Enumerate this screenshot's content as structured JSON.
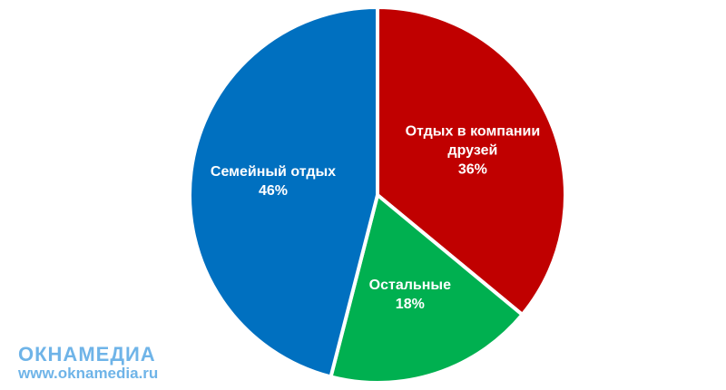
{
  "chart_data": {
    "type": "pie",
    "categories": [
      "Отдых в компании друзей",
      "Остальные",
      "Семейный отдых"
    ],
    "values": [
      36,
      18,
      46
    ],
    "value_labels": [
      "36%",
      "18%",
      "46%"
    ],
    "colors": [
      "#c00000",
      "#00b050",
      "#0070c0"
    ]
  },
  "watermark": {
    "brand": "ОКНАМЕДИА",
    "url": "www.oknamedia.ru"
  }
}
